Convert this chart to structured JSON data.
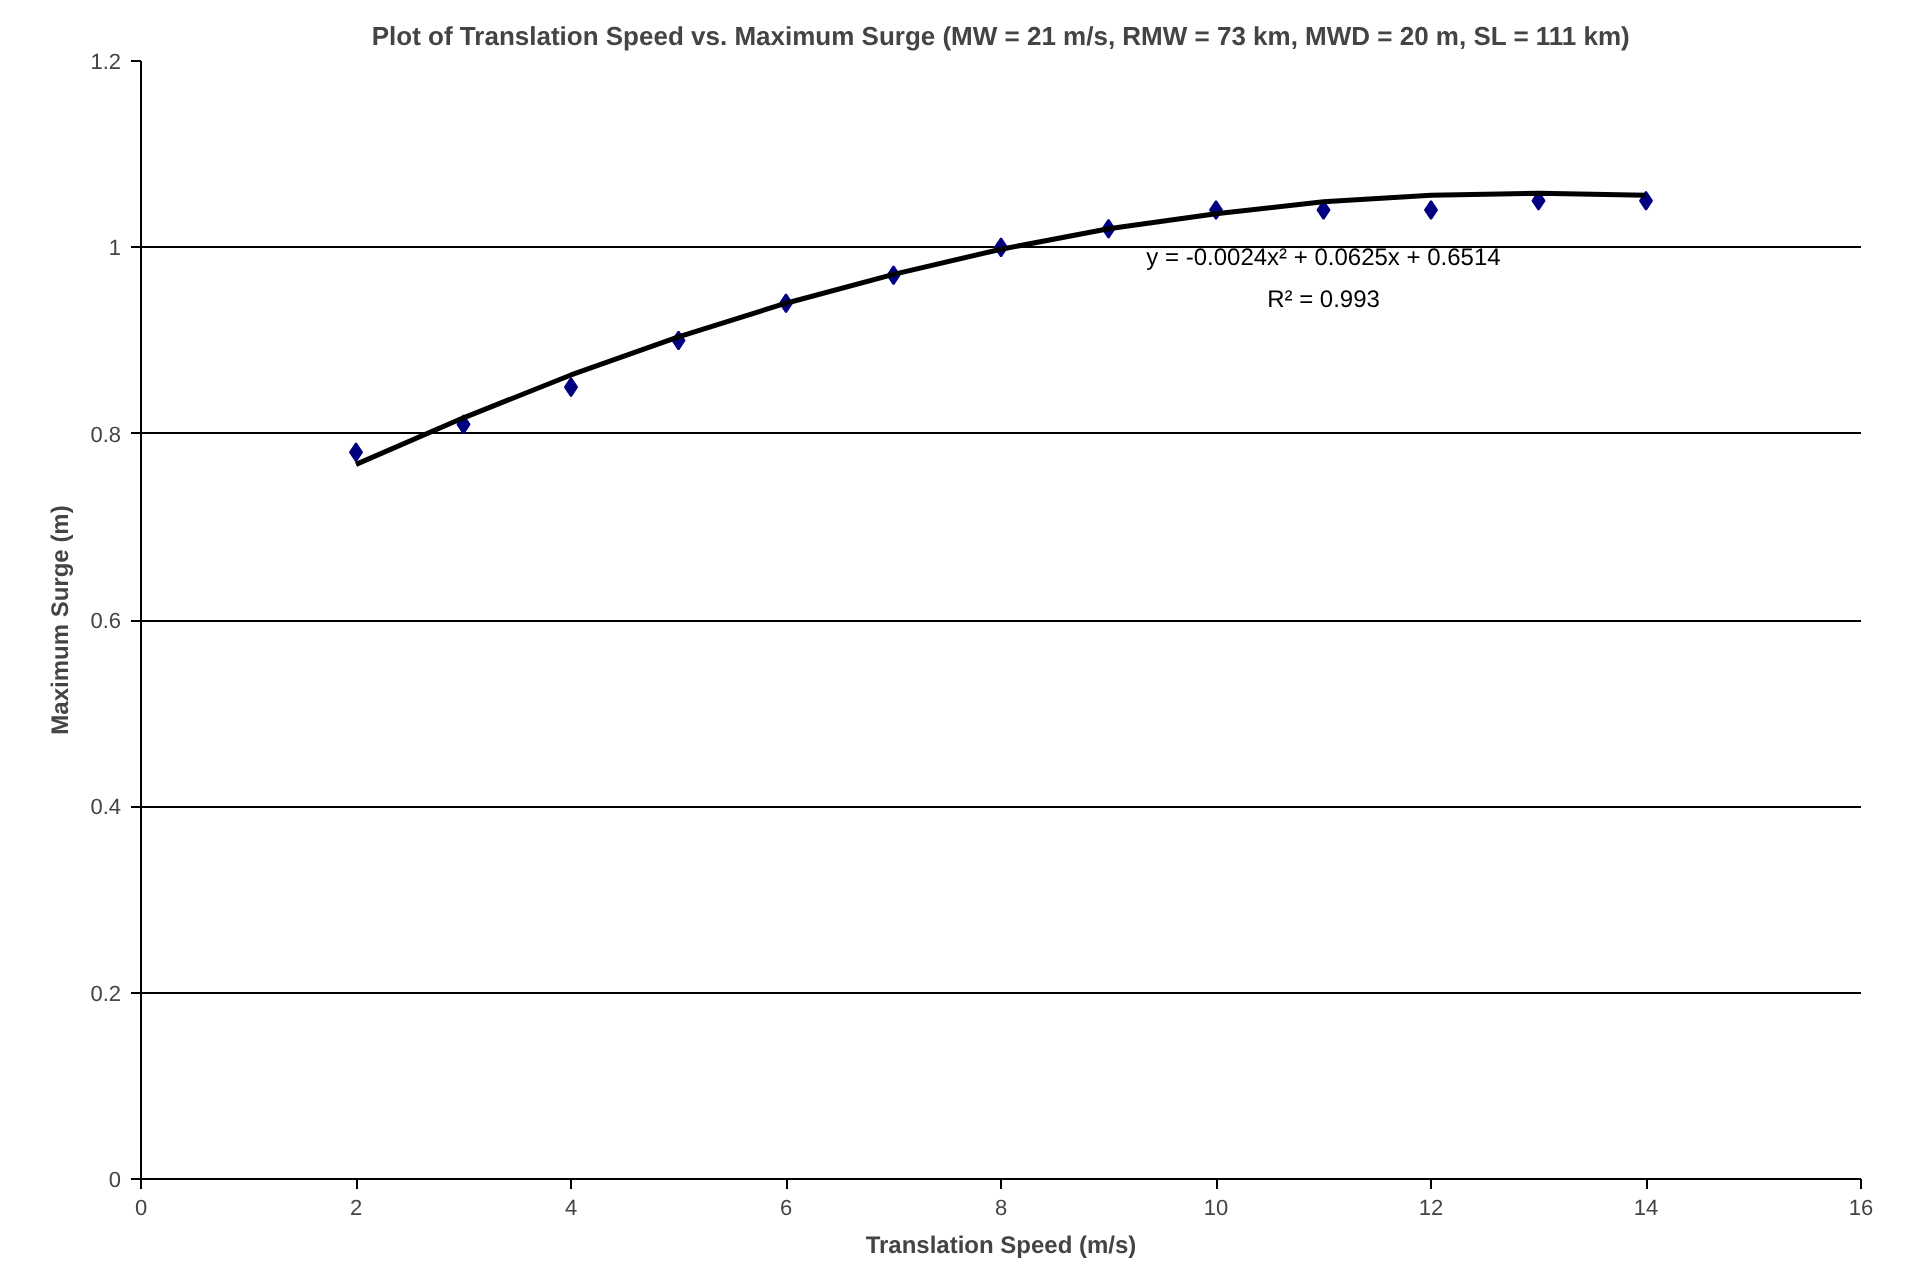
{
  "chart_data": {
    "type": "scatter",
    "title": "Plot of Translation Speed vs. Maximum Surge (MW = 21 m/s, RMW = 73 km, MWD = 20 m, SL = 111 km)",
    "xlabel": "Translation Speed (m/s)",
    "ylabel": "Maximum Surge (m)",
    "x": [
      2,
      3,
      4,
      5,
      6,
      7,
      8,
      9,
      10,
      11,
      12,
      13,
      14
    ],
    "series": [
      {
        "color": "#000080",
        "marker": "diamond",
        "values": [
          0.78,
          0.81,
          0.85,
          0.9,
          0.94,
          0.97,
          1.0,
          1.02,
          1.04,
          1.04,
          1.04,
          1.05,
          1.05
        ]
      },
      {
        "type": "line",
        "color": "#000000",
        "x": [
          2,
          3,
          4,
          5,
          6,
          7,
          8,
          9,
          10,
          11,
          12,
          13,
          14
        ],
        "values": [
          0.767,
          0.817,
          0.863,
          0.904,
          0.94,
          0.971,
          0.998,
          1.02,
          1.036,
          1.049,
          1.056,
          1.058,
          1.056
        ]
      }
    ],
    "xlim": [
      0,
      16
    ],
    "xticks": [
      0,
      2,
      4,
      6,
      8,
      10,
      12,
      14,
      16
    ],
    "ylim": [
      0,
      1.2
    ],
    "yticks": [
      0,
      0.2,
      0.4,
      0.6,
      0.8,
      1,
      1.2
    ],
    "grid": "y",
    "annotations": [
      "y = -0.0024x² + 0.0625x + 0.6514",
      "R² = 0.993"
    ]
  }
}
